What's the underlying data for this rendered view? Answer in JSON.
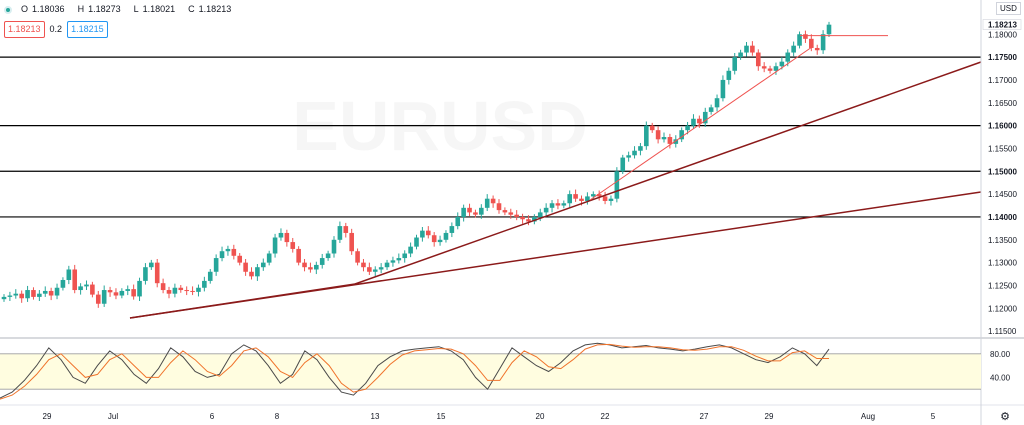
{
  "symbol": "EURUSD",
  "legend": {
    "open_label": "O",
    "open": "1.18036",
    "high_label": "H",
    "high": "1.18273",
    "low_label": "L",
    "low": "1.18021",
    "close_label": "C",
    "close": "1.18213",
    "sell_price": "1.18213",
    "spread": "0.2",
    "buy_price": "1.18215",
    "up_color": "#26a69a",
    "down_color": "#ef5350"
  },
  "currency_label": "USD",
  "current_price_label": "1.18213",
  "colors": {
    "bull": "#26a69a",
    "bear": "#ef5350",
    "trendline": "#8b1a1a",
    "hline": "#000000",
    "stoch_k": "#4a4a4a",
    "stoch_d": "#f0732b",
    "stoch_band": "#fffde0"
  },
  "chart_data": [
    {
      "type": "candlestick",
      "title": "",
      "x_ticks": [
        "29",
        "Jul",
        "6",
        "8",
        "13",
        "15",
        "20",
        "22",
        "27",
        "29",
        "Aug",
        "5"
      ],
      "y_ticks": [
        "1.11500",
        "1.12000",
        "1.12500",
        "1.13000",
        "1.13500",
        "1.14000",
        "1.14500",
        "1.15000",
        "1.15500",
        "1.16000",
        "1.16500",
        "1.17000",
        "1.17500",
        "1.18000"
      ],
      "ylim": [
        1.1135,
        1.1875
      ],
      "bold_price_labels": [
        "1.17500",
        "1.16000",
        "1.15000",
        "1.14000",
        "1.18213"
      ],
      "horizontal_levels": [
        1.175,
        1.16,
        1.15,
        1.14
      ],
      "close_series": [
        1.1225,
        1.1228,
        1.1232,
        1.1222,
        1.124,
        1.1225,
        1.1232,
        1.1238,
        1.1228,
        1.1245,
        1.1262,
        1.1285,
        1.124,
        1.1248,
        1.1252,
        1.123,
        1.121,
        1.124,
        1.1235,
        1.1228,
        1.1238,
        1.1242,
        1.1226,
        1.126,
        1.129,
        1.13,
        1.1255,
        1.124,
        1.1232,
        1.1245,
        1.124,
        1.1238,
        1.1236,
        1.1245,
        1.126,
        1.128,
        1.131,
        1.1325,
        1.133,
        1.1315,
        1.13,
        1.128,
        1.127,
        1.129,
        1.13,
        1.132,
        1.1355,
        1.1365,
        1.1345,
        1.133,
        1.13,
        1.129,
        1.1285,
        1.1295,
        1.131,
        1.132,
        1.135,
        1.138,
        1.1365,
        1.1325,
        1.13,
        1.129,
        1.128,
        1.1285,
        1.129,
        1.13,
        1.1305,
        1.131,
        1.132,
        1.1335,
        1.1355,
        1.137,
        1.136,
        1.1345,
        1.135,
        1.1365,
        1.138,
        1.14,
        1.142,
        1.141,
        1.1405,
        1.142,
        1.144,
        1.143,
        1.1415,
        1.141,
        1.1405,
        1.14,
        1.1395,
        1.139,
        1.14,
        1.141,
        1.142,
        1.143,
        1.1425,
        1.143,
        1.145,
        1.144,
        1.1435,
        1.1445,
        1.145,
        1.1445,
        1.1435,
        1.144,
        1.15,
        1.153,
        1.1535,
        1.1545,
        1.1555,
        1.16,
        1.159,
        1.157,
        1.1575,
        1.156,
        1.157,
        1.159,
        1.16,
        1.1615,
        1.1605,
        1.163,
        1.164,
        1.166,
        1.17,
        1.172,
        1.175,
        1.176,
        1.1775,
        1.176,
        1.173,
        1.1725,
        1.172,
        1.173,
        1.174,
        1.176,
        1.1775,
        1.18,
        1.179,
        1.177,
        1.1765,
        1.18,
        1.1821
      ]
    },
    {
      "type": "line",
      "title": "",
      "y_ticks": [
        "80.00",
        "40.00"
      ],
      "ylim": [
        0,
        100
      ],
      "band": [
        20,
        80
      ],
      "series": [
        {
          "role": "k",
          "values": [
            5,
            15,
            35,
            60,
            90,
            70,
            40,
            30,
            60,
            85,
            70,
            45,
            30,
            55,
            90,
            75,
            50,
            40,
            45,
            80,
            95,
            85,
            60,
            30,
            45,
            85,
            70,
            40,
            15,
            10,
            30,
            60,
            75,
            85,
            88,
            90,
            92,
            85,
            70,
            40,
            20,
            55,
            90,
            75,
            60,
            50,
            65,
            85,
            95,
            98,
            95,
            90,
            92,
            94,
            90,
            88,
            85,
            88,
            92,
            95,
            90,
            80,
            70,
            65,
            75,
            90,
            80,
            60,
            88
          ]
        },
        {
          "role": "d",
          "values": [
            3,
            10,
            25,
            45,
            70,
            80,
            60,
            40,
            45,
            70,
            80,
            60,
            40,
            40,
            65,
            85,
            70,
            50,
            42,
            60,
            85,
            90,
            75,
            50,
            40,
            65,
            80,
            60,
            30,
            15,
            20,
            40,
            62,
            78,
            85,
            87,
            89,
            88,
            80,
            60,
            35,
            35,
            65,
            85,
            75,
            58,
            55,
            70,
            88,
            95,
            96,
            93,
            91,
            92,
            92,
            90,
            87,
            86,
            88,
            92,
            92,
            86,
            76,
            68,
            68,
            82,
            85,
            72,
            72
          ]
        }
      ]
    }
  ]
}
